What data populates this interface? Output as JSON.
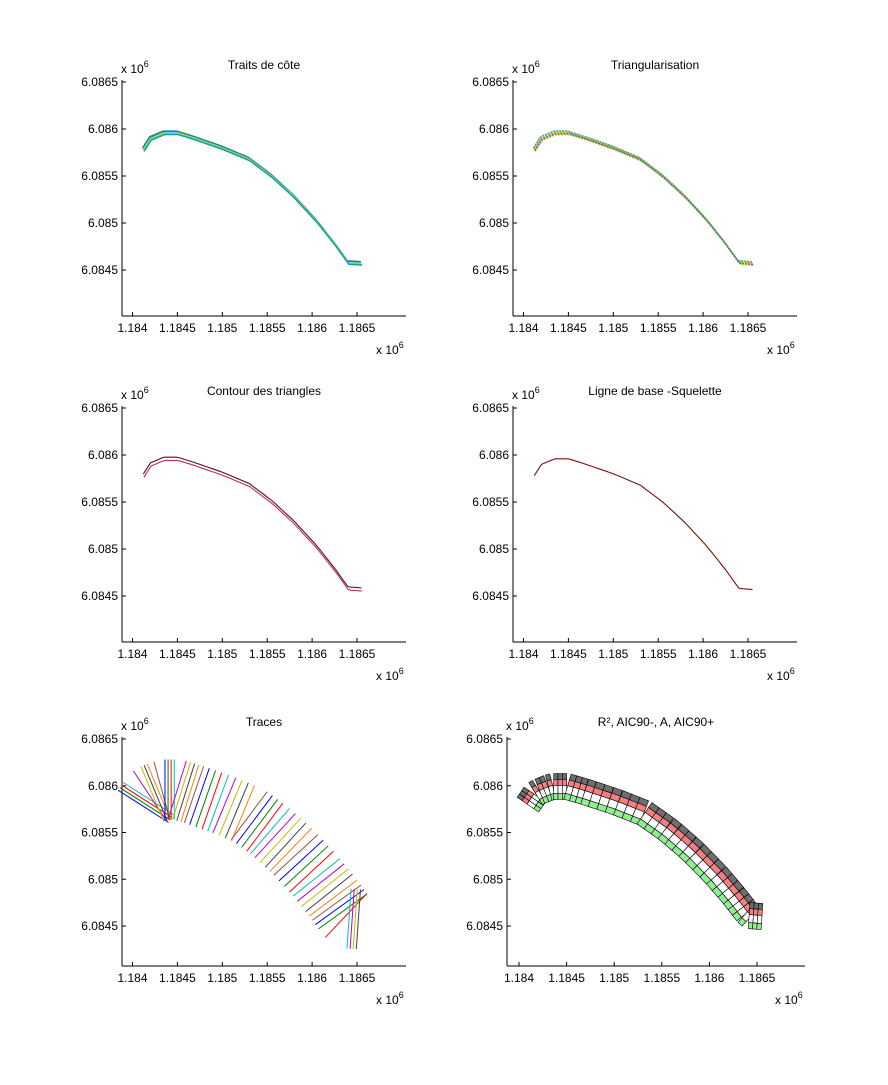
{
  "chart_data": [
    {
      "type": "line",
      "title": "Traits de côte",
      "xlabel": "",
      "ylabel": "",
      "xlim": [
        1.18387,
        1.18675
      ],
      "ylim": [
        6.084,
        6.08652
      ],
      "x_ticks": [
        "1.184",
        "1.1845",
        "1.185",
        "1.1855",
        "1.186",
        "1.1865"
      ],
      "y_ticks": [
        "6.0865",
        "6.086",
        "6.0855",
        "6.085",
        "6.0845"
      ],
      "x_scale_label": "x 10^6",
      "y_scale_label": "x 10^6",
      "x_exp": "6",
      "y_exp": "6",
      "coastline": {
        "x": [
          1.18412,
          1.1842,
          1.18435,
          1.1845,
          1.1847,
          1.185,
          1.1853,
          1.18555,
          1.1858,
          1.18605,
          1.18625,
          1.1864,
          1.18655
        ],
        "y": [
          6.08578,
          6.0859,
          6.08596,
          6.08596,
          6.0859,
          6.0858,
          6.08568,
          6.0855,
          6.08528,
          6.08502,
          6.08478,
          6.08458,
          6.08457
        ]
      },
      "series_colors": [
        "#1f77b4",
        "#2ca02c",
        "#7fd3ff",
        "#9acd32",
        "#00a0a0"
      ]
    },
    {
      "type": "line",
      "title": "Triangularisation",
      "xlabel": "",
      "ylabel": "",
      "xlim": [
        1.18387,
        1.18675
      ],
      "ylim": [
        6.084,
        6.08652
      ],
      "x_ticks": [
        "1.184",
        "1.1845",
        "1.185",
        "1.1855",
        "1.186",
        "1.1865"
      ],
      "y_ticks": [
        "6.0865",
        "6.086",
        "6.0855",
        "6.085",
        "6.0845"
      ],
      "x_exp": "6",
      "y_exp": "6",
      "series_colors": [
        "#9acd32",
        "#1f77b4",
        "#c678dd",
        "#e6b800",
        "#17becf",
        "#ff7f0e"
      ]
    },
    {
      "type": "line",
      "title": "Contour des triangles",
      "xlabel": "",
      "ylabel": "",
      "xlim": [
        1.18387,
        1.18675
      ],
      "ylim": [
        6.084,
        6.08652
      ],
      "x_ticks": [
        "1.184",
        "1.1845",
        "1.185",
        "1.1855",
        "1.186",
        "1.1865"
      ],
      "y_ticks": [
        "6.0865",
        "6.086",
        "6.0855",
        "6.085",
        "6.0845"
      ],
      "x_exp": "6",
      "y_exp": "6",
      "series_colors": [
        "#5a0a32",
        "#c0304a"
      ]
    },
    {
      "type": "line",
      "title": "Ligne de base -Squelette",
      "xlabel": "",
      "ylabel": "",
      "xlim": [
        1.18387,
        1.18675
      ],
      "ylim": [
        6.084,
        6.08652
      ],
      "x_ticks": [
        "1.184",
        "1.1845",
        "1.185",
        "1.1855",
        "1.186",
        "1.1865"
      ],
      "y_ticks": [
        "6.0865",
        "6.086",
        "6.0855",
        "6.085",
        "6.0845"
      ],
      "x_exp": "6",
      "y_exp": "6",
      "series_colors": [
        "#7a1010"
      ]
    },
    {
      "type": "line",
      "title": "Traces",
      "xlabel": "",
      "ylabel": "",
      "xlim": [
        1.18387,
        1.18675
      ],
      "ylim": [
        6.084,
        6.08652
      ],
      "x_ticks": [
        "1.184",
        "1.1845",
        "1.185",
        "1.1855",
        "1.186",
        "1.1865"
      ],
      "y_ticks": [
        "6.0865",
        "6.086",
        "6.0855",
        "6.085",
        "6.0845"
      ],
      "x_exp": "6",
      "y_exp": "6",
      "transect_count": 52,
      "series_colors": [
        "#0000ff",
        "#008000",
        "#ff0000",
        "#00bfbf",
        "#bf00bf",
        "#bfbf00",
        "#404040",
        "#ff7f0e",
        "#8c564b"
      ]
    },
    {
      "type": "heatmap",
      "title": "R², AIC90-, A, AIC90+",
      "xlabel": "",
      "ylabel": "",
      "xlim": [
        1.18387,
        1.1868
      ],
      "ylim": [
        6.084,
        6.08652
      ],
      "x_ticks": [
        "1.184",
        "1.1845",
        "1.185",
        "1.1855",
        "1.186",
        "1.1865"
      ],
      "y_ticks": [
        "6.0865",
        "6.086",
        "6.0855",
        "6.085",
        "6.0845"
      ],
      "x_exp": "6",
      "y_exp": "6",
      "band_labels": [
        "R²",
        "AIC90-",
        "A",
        "AIC90+"
      ],
      "band_colors": {
        "r2": "#6e6e6e",
        "aic_minus": "#f28080",
        "a": "#ffffff",
        "aic_plus": "#90ee90"
      }
    }
  ]
}
